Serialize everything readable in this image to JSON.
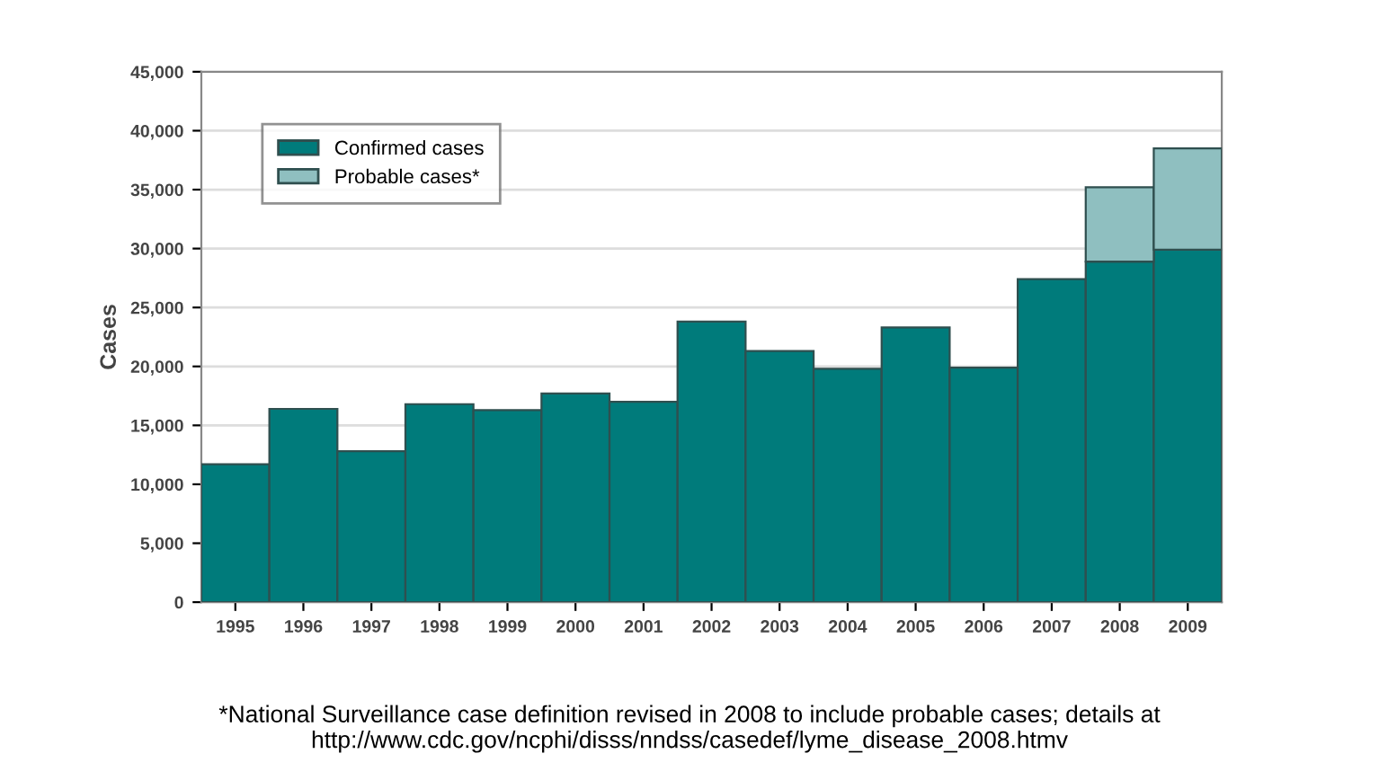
{
  "chart_data": {
    "type": "bar",
    "ylabel": "Cases",
    "stacked": true,
    "categories": [
      "1995",
      "1996",
      "1997",
      "1998",
      "1999",
      "2000",
      "2001",
      "2002",
      "2003",
      "2004",
      "2005",
      "2006",
      "2007",
      "2008",
      "2009"
    ],
    "series": [
      {
        "name": "Confirmed cases",
        "color": "#007b7b",
        "values": [
          11700,
          16400,
          12800,
          16800,
          16300,
          17700,
          17000,
          23800,
          21300,
          19800,
          23300,
          19900,
          27400,
          28900,
          29900
        ]
      },
      {
        "name": "Probable cases*",
        "color": "#8fbfc0",
        "values": [
          null,
          null,
          null,
          null,
          null,
          null,
          null,
          null,
          null,
          null,
          null,
          null,
          null,
          6300,
          8600
        ]
      }
    ],
    "ylim": [
      0,
      45000
    ],
    "yticks": [
      {
        "value": 0,
        "label": "0"
      },
      {
        "value": 5000,
        "label": "5,000"
      },
      {
        "value": 10000,
        "label": "10,000"
      },
      {
        "value": 15000,
        "label": "15,000"
      },
      {
        "value": 20000,
        "label": "20,000"
      },
      {
        "value": 25000,
        "label": "25,000"
      },
      {
        "value": 30000,
        "label": "30,000"
      },
      {
        "value": 35000,
        "label": "35,000"
      },
      {
        "value": 40000,
        "label": "40,000"
      },
      {
        "value": 45000,
        "label": "45,000"
      }
    ],
    "grid": "y",
    "legend": "top left",
    "annotations": [
      "*National Surveillance case definition revised in 2008 to include probable cases; details at http://www.cdc.gov/ncphi/disss/nndss/casedef/lyme_disease_2008.htmv"
    ]
  }
}
